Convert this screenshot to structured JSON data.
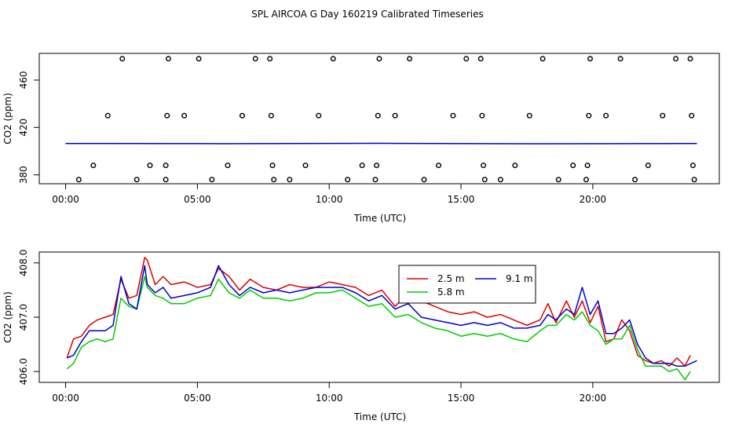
{
  "title": "SPL AIRCOA G  Day 160219  Calibrated Timeseries",
  "colors": {
    "s2_5": "#dd0000",
    "s5_8": "#00cc00",
    "s9_1": "#0000cc",
    "frame": "#000000"
  },
  "chart_data": [
    {
      "type": "scatter",
      "name": "top-panel",
      "xlabel": "Time (UTC)",
      "ylabel": "CO2 (ppm)",
      "xlim": [
        -1.0,
        24.8
      ],
      "ylim": [
        372.5,
        482.5
      ],
      "xticks": [
        0,
        5,
        10,
        15,
        20
      ],
      "xtick_labels": [
        "00:00",
        "05:00",
        "10:00",
        "15:00",
        "20:00"
      ],
      "yticks": [
        380,
        420,
        460
      ],
      "ytick_labels": [
        "380",
        "420",
        "460"
      ],
      "flag_points": [
        {
          "x": 2.15,
          "y": 478
        },
        {
          "x": 3.9,
          "y": 478
        },
        {
          "x": 5.05,
          "y": 478
        },
        {
          "x": 7.2,
          "y": 478
        },
        {
          "x": 7.75,
          "y": 478
        },
        {
          "x": 10.15,
          "y": 478
        },
        {
          "x": 11.9,
          "y": 478
        },
        {
          "x": 13.05,
          "y": 478
        },
        {
          "x": 15.2,
          "y": 478
        },
        {
          "x": 15.75,
          "y": 478
        },
        {
          "x": 18.1,
          "y": 478
        },
        {
          "x": 19.9,
          "y": 478
        },
        {
          "x": 21.05,
          "y": 478
        },
        {
          "x": 23.15,
          "y": 478
        },
        {
          "x": 23.7,
          "y": 478
        },
        {
          "x": 1.6,
          "y": 430
        },
        {
          "x": 3.85,
          "y": 430
        },
        {
          "x": 4.5,
          "y": 430
        },
        {
          "x": 6.7,
          "y": 430
        },
        {
          "x": 7.8,
          "y": 430
        },
        {
          "x": 9.6,
          "y": 430
        },
        {
          "x": 11.85,
          "y": 430
        },
        {
          "x": 12.5,
          "y": 430
        },
        {
          "x": 14.7,
          "y": 430
        },
        {
          "x": 15.8,
          "y": 430
        },
        {
          "x": 17.6,
          "y": 430
        },
        {
          "x": 19.85,
          "y": 430
        },
        {
          "x": 20.5,
          "y": 430
        },
        {
          "x": 22.65,
          "y": 430
        },
        {
          "x": 23.75,
          "y": 430
        },
        {
          "x": 1.05,
          "y": 388
        },
        {
          "x": 3.2,
          "y": 388
        },
        {
          "x": 3.8,
          "y": 388
        },
        {
          "x": 6.15,
          "y": 388
        },
        {
          "x": 7.85,
          "y": 388
        },
        {
          "x": 9.1,
          "y": 388
        },
        {
          "x": 11.25,
          "y": 388
        },
        {
          "x": 11.8,
          "y": 388
        },
        {
          "x": 14.15,
          "y": 388
        },
        {
          "x": 15.85,
          "y": 388
        },
        {
          "x": 17.05,
          "y": 388
        },
        {
          "x": 19.25,
          "y": 388
        },
        {
          "x": 19.8,
          "y": 388
        },
        {
          "x": 22.1,
          "y": 388
        },
        {
          "x": 23.8,
          "y": 388
        },
        {
          "x": 0.5,
          "y": 376
        },
        {
          "x": 2.7,
          "y": 376
        },
        {
          "x": 3.8,
          "y": 376
        },
        {
          "x": 5.55,
          "y": 376
        },
        {
          "x": 7.9,
          "y": 376
        },
        {
          "x": 8.5,
          "y": 376
        },
        {
          "x": 10.7,
          "y": 376
        },
        {
          "x": 11.75,
          "y": 376
        },
        {
          "x": 13.6,
          "y": 376
        },
        {
          "x": 15.9,
          "y": 376
        },
        {
          "x": 16.5,
          "y": 376
        },
        {
          "x": 18.7,
          "y": 376
        },
        {
          "x": 19.75,
          "y": 376
        },
        {
          "x": 21.6,
          "y": 376
        },
        {
          "x": 23.85,
          "y": 376
        }
      ],
      "co2_line": {
        "x": [
          0.0,
          6.0,
          12.0,
          18.0,
          23.95
        ],
        "y": [
          406.5,
          407.5,
          407.0,
          406.8,
          406.2
        ]
      }
    },
    {
      "type": "line",
      "name": "bottom-panel",
      "xlabel": "Time (UTC)",
      "ylabel": "CO2 (ppm)",
      "xlim": [
        -1.0,
        24.8
      ],
      "ylim": [
        405.8,
        408.2
      ],
      "xticks": [
        0,
        5,
        10,
        15,
        20
      ],
      "xtick_labels": [
        "00:00",
        "05:00",
        "10:00",
        "15:00",
        "20:00"
      ],
      "yticks": [
        406.0,
        407.0,
        408.0
      ],
      "ytick_labels": [
        "406.0",
        "407.0",
        "408.0"
      ],
      "legend": {
        "position": "center-right",
        "entries": [
          "2.5 m",
          "5.8 m",
          "9.1 m"
        ]
      },
      "series": [
        {
          "name": "2.5 m",
          "x": [
            0.05,
            0.3,
            0.6,
            0.9,
            1.2,
            1.5,
            1.8,
            2.1,
            2.4,
            2.7,
            3.0,
            3.1,
            3.4,
            3.7,
            4.0,
            4.5,
            5.0,
            5.5,
            5.8,
            6.2,
            6.6,
            7.0,
            7.5,
            8.0,
            8.5,
            9.0,
            9.5,
            10.0,
            10.5,
            11.0,
            11.5,
            12.0,
            12.5,
            13.0,
            13.5,
            14.0,
            14.5,
            15.0,
            15.5,
            16.0,
            16.5,
            17.0,
            17.5,
            18.0,
            18.3,
            18.6,
            19.0,
            19.3,
            19.6,
            19.9,
            20.2,
            20.5,
            20.8,
            21.1,
            21.4,
            21.7,
            22.0,
            22.3,
            22.6,
            22.9,
            23.2,
            23.5,
            23.7
          ],
          "y": [
            406.25,
            406.6,
            406.65,
            406.85,
            406.95,
            407.0,
            407.05,
            407.7,
            407.35,
            407.4,
            408.1,
            408.05,
            407.6,
            407.75,
            407.6,
            407.65,
            407.55,
            407.6,
            407.9,
            407.75,
            407.5,
            407.7,
            407.55,
            407.5,
            407.6,
            407.55,
            407.55,
            407.65,
            407.6,
            407.55,
            407.4,
            407.5,
            407.2,
            407.45,
            407.3,
            407.2,
            407.1,
            407.05,
            407.1,
            407.0,
            407.05,
            406.95,
            406.85,
            406.95,
            407.25,
            406.9,
            407.3,
            407.0,
            407.3,
            406.9,
            407.2,
            406.55,
            406.6,
            406.95,
            406.75,
            406.3,
            406.2,
            406.15,
            406.2,
            406.1,
            406.25,
            406.1,
            406.3
          ]
        },
        {
          "name": "5.8 m",
          "x": [
            0.05,
            0.3,
            0.6,
            0.9,
            1.2,
            1.5,
            1.8,
            2.1,
            2.4,
            2.7,
            3.0,
            3.1,
            3.4,
            3.7,
            4.0,
            4.5,
            5.0,
            5.5,
            5.8,
            6.2,
            6.6,
            7.0,
            7.5,
            8.0,
            8.5,
            9.0,
            9.5,
            10.0,
            10.5,
            11.0,
            11.5,
            12.0,
            12.5,
            13.0,
            13.5,
            14.0,
            14.5,
            15.0,
            15.5,
            16.0,
            16.5,
            17.0,
            17.5,
            18.0,
            18.3,
            18.6,
            19.0,
            19.3,
            19.6,
            19.9,
            20.2,
            20.5,
            20.8,
            21.1,
            21.4,
            21.7,
            22.0,
            22.3,
            22.6,
            22.9,
            23.2,
            23.5,
            23.7
          ],
          "y": [
            406.05,
            406.15,
            406.45,
            406.55,
            406.6,
            406.55,
            406.6,
            407.35,
            407.2,
            407.15,
            407.75,
            407.55,
            407.4,
            407.35,
            407.25,
            407.25,
            407.35,
            407.4,
            407.7,
            407.45,
            407.35,
            407.5,
            407.35,
            407.35,
            407.3,
            407.35,
            407.45,
            407.45,
            407.5,
            407.35,
            407.2,
            407.25,
            407.0,
            407.05,
            406.9,
            406.8,
            406.75,
            406.65,
            406.7,
            406.65,
            406.7,
            406.6,
            406.55,
            406.75,
            406.85,
            406.85,
            407.05,
            406.95,
            407.1,
            406.85,
            406.75,
            406.5,
            406.6,
            406.6,
            406.85,
            406.4,
            406.1,
            406.1,
            406.1,
            406.0,
            406.05,
            405.85,
            406.0
          ]
        },
        {
          "name": "9.1 m",
          "x": [
            0.05,
            0.3,
            0.6,
            0.9,
            1.2,
            1.5,
            1.8,
            2.1,
            2.4,
            2.7,
            3.0,
            3.1,
            3.4,
            3.7,
            4.0,
            4.5,
            5.0,
            5.5,
            5.8,
            6.2,
            6.6,
            7.0,
            7.5,
            8.0,
            8.5,
            9.0,
            9.5,
            10.0,
            10.5,
            11.0,
            11.5,
            12.0,
            12.5,
            13.0,
            13.5,
            14.0,
            14.5,
            15.0,
            15.5,
            16.0,
            16.5,
            17.0,
            17.5,
            18.0,
            18.3,
            18.6,
            19.0,
            19.3,
            19.6,
            19.9,
            20.2,
            20.5,
            20.8,
            21.1,
            21.4,
            21.7,
            22.0,
            22.3,
            22.6,
            22.9,
            23.2,
            23.5,
            23.95
          ],
          "y": [
            406.25,
            406.3,
            406.55,
            406.75,
            406.75,
            406.75,
            406.85,
            407.75,
            407.25,
            407.15,
            407.95,
            407.6,
            407.45,
            407.55,
            407.35,
            407.4,
            407.45,
            407.55,
            407.95,
            407.6,
            407.4,
            407.55,
            407.45,
            407.5,
            407.45,
            407.5,
            407.55,
            407.55,
            407.55,
            407.45,
            407.3,
            407.4,
            407.15,
            407.25,
            407.0,
            406.95,
            406.9,
            406.85,
            406.9,
            406.85,
            406.9,
            406.8,
            406.8,
            406.85,
            407.05,
            406.95,
            407.15,
            407.05,
            407.55,
            407.05,
            407.3,
            406.7,
            406.7,
            406.8,
            406.95,
            406.5,
            406.25,
            406.15,
            406.15,
            406.15,
            406.1,
            406.1,
            406.2
          ]
        }
      ]
    }
  ]
}
